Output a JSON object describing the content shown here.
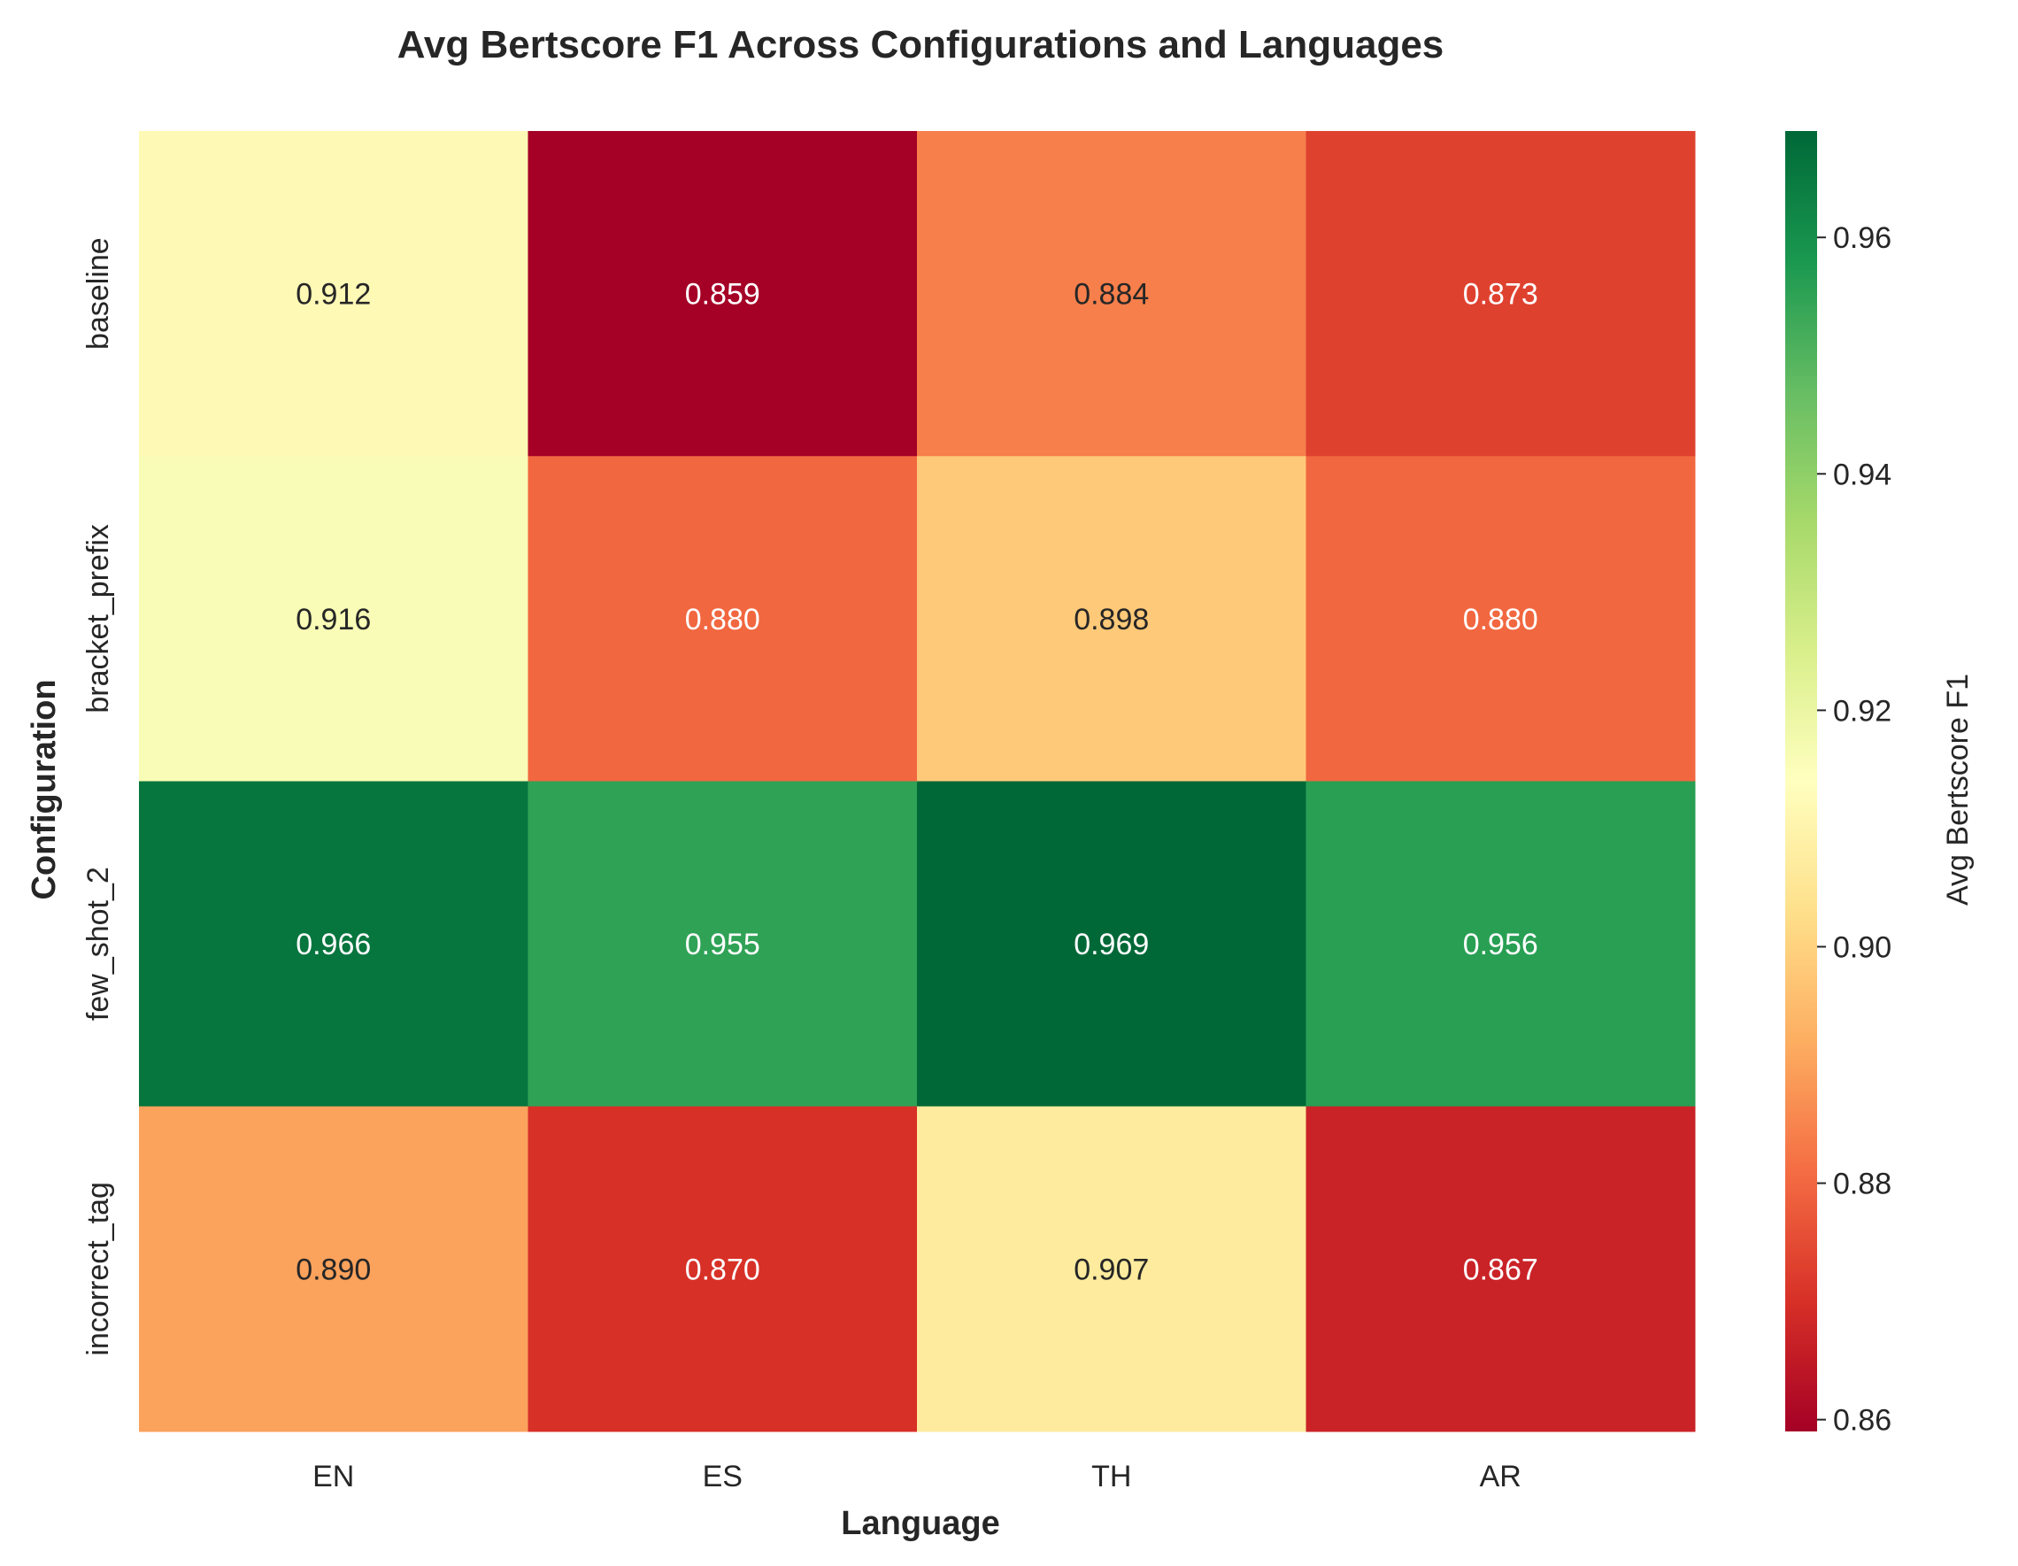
{
  "chart_data": {
    "type": "heatmap",
    "title": "Avg Bertscore F1 Across Configurations and Languages",
    "xlabel": "Language",
    "ylabel": "Configuration",
    "x_categories": [
      "EN",
      "ES",
      "TH",
      "AR"
    ],
    "y_categories": [
      "baseline",
      "bracket_prefix",
      "few_shot_2",
      "incorrect_tag"
    ],
    "values": [
      [
        0.912,
        0.859,
        0.884,
        0.873
      ],
      [
        0.916,
        0.88,
        0.898,
        0.88
      ],
      [
        0.966,
        0.955,
        0.969,
        0.956
      ],
      [
        0.89,
        0.87,
        0.907,
        0.867
      ]
    ],
    "value_format": "0.000",
    "colormap": "RdYlGn",
    "colorbar": {
      "label": "Avg Bertscore F1",
      "range": [
        0.859,
        0.969
      ],
      "ticks": [
        0.86,
        0.88,
        0.9,
        0.92,
        0.94,
        0.96
      ],
      "tick_labels": [
        "0.86",
        "0.88",
        "0.90",
        "0.92",
        "0.94",
        "0.96"
      ],
      "placement": "right"
    },
    "grid": false
  }
}
